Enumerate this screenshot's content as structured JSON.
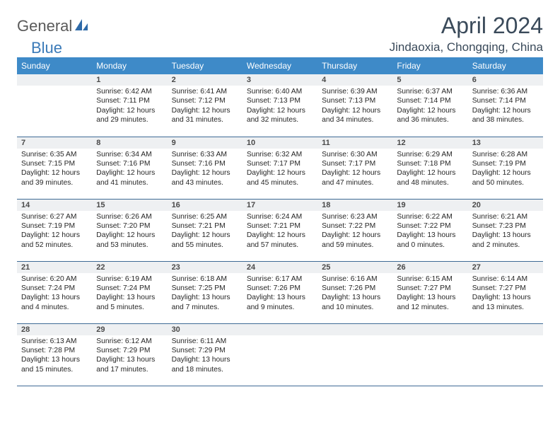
{
  "logo": {
    "general": "General",
    "blue": "Blue"
  },
  "title": "April 2024",
  "location": "Jindaoxia, Chongqing, China",
  "colors": {
    "header_bg": "#3e8ac8",
    "header_text": "#ffffff",
    "border": "#3e6a95",
    "daynum_bg": "#eef0f2",
    "text": "#262626",
    "title_color": "#3a4a5a"
  },
  "weekdays": [
    "Sunday",
    "Monday",
    "Tuesday",
    "Wednesday",
    "Thursday",
    "Friday",
    "Saturday"
  ],
  "weeks": [
    [
      {
        "n": "",
        "sunrise": "",
        "sunset": "",
        "daylight": ""
      },
      {
        "n": "1",
        "sunrise": "Sunrise: 6:42 AM",
        "sunset": "Sunset: 7:11 PM",
        "daylight": "Daylight: 12 hours and 29 minutes."
      },
      {
        "n": "2",
        "sunrise": "Sunrise: 6:41 AM",
        "sunset": "Sunset: 7:12 PM",
        "daylight": "Daylight: 12 hours and 31 minutes."
      },
      {
        "n": "3",
        "sunrise": "Sunrise: 6:40 AM",
        "sunset": "Sunset: 7:13 PM",
        "daylight": "Daylight: 12 hours and 32 minutes."
      },
      {
        "n": "4",
        "sunrise": "Sunrise: 6:39 AM",
        "sunset": "Sunset: 7:13 PM",
        "daylight": "Daylight: 12 hours and 34 minutes."
      },
      {
        "n": "5",
        "sunrise": "Sunrise: 6:37 AM",
        "sunset": "Sunset: 7:14 PM",
        "daylight": "Daylight: 12 hours and 36 minutes."
      },
      {
        "n": "6",
        "sunrise": "Sunrise: 6:36 AM",
        "sunset": "Sunset: 7:14 PM",
        "daylight": "Daylight: 12 hours and 38 minutes."
      }
    ],
    [
      {
        "n": "7",
        "sunrise": "Sunrise: 6:35 AM",
        "sunset": "Sunset: 7:15 PM",
        "daylight": "Daylight: 12 hours and 39 minutes."
      },
      {
        "n": "8",
        "sunrise": "Sunrise: 6:34 AM",
        "sunset": "Sunset: 7:16 PM",
        "daylight": "Daylight: 12 hours and 41 minutes."
      },
      {
        "n": "9",
        "sunrise": "Sunrise: 6:33 AM",
        "sunset": "Sunset: 7:16 PM",
        "daylight": "Daylight: 12 hours and 43 minutes."
      },
      {
        "n": "10",
        "sunrise": "Sunrise: 6:32 AM",
        "sunset": "Sunset: 7:17 PM",
        "daylight": "Daylight: 12 hours and 45 minutes."
      },
      {
        "n": "11",
        "sunrise": "Sunrise: 6:30 AM",
        "sunset": "Sunset: 7:17 PM",
        "daylight": "Daylight: 12 hours and 47 minutes."
      },
      {
        "n": "12",
        "sunrise": "Sunrise: 6:29 AM",
        "sunset": "Sunset: 7:18 PM",
        "daylight": "Daylight: 12 hours and 48 minutes."
      },
      {
        "n": "13",
        "sunrise": "Sunrise: 6:28 AM",
        "sunset": "Sunset: 7:19 PM",
        "daylight": "Daylight: 12 hours and 50 minutes."
      }
    ],
    [
      {
        "n": "14",
        "sunrise": "Sunrise: 6:27 AM",
        "sunset": "Sunset: 7:19 PM",
        "daylight": "Daylight: 12 hours and 52 minutes."
      },
      {
        "n": "15",
        "sunrise": "Sunrise: 6:26 AM",
        "sunset": "Sunset: 7:20 PM",
        "daylight": "Daylight: 12 hours and 53 minutes."
      },
      {
        "n": "16",
        "sunrise": "Sunrise: 6:25 AM",
        "sunset": "Sunset: 7:21 PM",
        "daylight": "Daylight: 12 hours and 55 minutes."
      },
      {
        "n": "17",
        "sunrise": "Sunrise: 6:24 AM",
        "sunset": "Sunset: 7:21 PM",
        "daylight": "Daylight: 12 hours and 57 minutes."
      },
      {
        "n": "18",
        "sunrise": "Sunrise: 6:23 AM",
        "sunset": "Sunset: 7:22 PM",
        "daylight": "Daylight: 12 hours and 59 minutes."
      },
      {
        "n": "19",
        "sunrise": "Sunrise: 6:22 AM",
        "sunset": "Sunset: 7:22 PM",
        "daylight": "Daylight: 13 hours and 0 minutes."
      },
      {
        "n": "20",
        "sunrise": "Sunrise: 6:21 AM",
        "sunset": "Sunset: 7:23 PM",
        "daylight": "Daylight: 13 hours and 2 minutes."
      }
    ],
    [
      {
        "n": "21",
        "sunrise": "Sunrise: 6:20 AM",
        "sunset": "Sunset: 7:24 PM",
        "daylight": "Daylight: 13 hours and 4 minutes."
      },
      {
        "n": "22",
        "sunrise": "Sunrise: 6:19 AM",
        "sunset": "Sunset: 7:24 PM",
        "daylight": "Daylight: 13 hours and 5 minutes."
      },
      {
        "n": "23",
        "sunrise": "Sunrise: 6:18 AM",
        "sunset": "Sunset: 7:25 PM",
        "daylight": "Daylight: 13 hours and 7 minutes."
      },
      {
        "n": "24",
        "sunrise": "Sunrise: 6:17 AM",
        "sunset": "Sunset: 7:26 PM",
        "daylight": "Daylight: 13 hours and 9 minutes."
      },
      {
        "n": "25",
        "sunrise": "Sunrise: 6:16 AM",
        "sunset": "Sunset: 7:26 PM",
        "daylight": "Daylight: 13 hours and 10 minutes."
      },
      {
        "n": "26",
        "sunrise": "Sunrise: 6:15 AM",
        "sunset": "Sunset: 7:27 PM",
        "daylight": "Daylight: 13 hours and 12 minutes."
      },
      {
        "n": "27",
        "sunrise": "Sunrise: 6:14 AM",
        "sunset": "Sunset: 7:27 PM",
        "daylight": "Daylight: 13 hours and 13 minutes."
      }
    ],
    [
      {
        "n": "28",
        "sunrise": "Sunrise: 6:13 AM",
        "sunset": "Sunset: 7:28 PM",
        "daylight": "Daylight: 13 hours and 15 minutes."
      },
      {
        "n": "29",
        "sunrise": "Sunrise: 6:12 AM",
        "sunset": "Sunset: 7:29 PM",
        "daylight": "Daylight: 13 hours and 17 minutes."
      },
      {
        "n": "30",
        "sunrise": "Sunrise: 6:11 AM",
        "sunset": "Sunset: 7:29 PM",
        "daylight": "Daylight: 13 hours and 18 minutes."
      },
      {
        "n": "",
        "sunrise": "",
        "sunset": "",
        "daylight": ""
      },
      {
        "n": "",
        "sunrise": "",
        "sunset": "",
        "daylight": ""
      },
      {
        "n": "",
        "sunrise": "",
        "sunset": "",
        "daylight": ""
      },
      {
        "n": "",
        "sunrise": "",
        "sunset": "",
        "daylight": ""
      }
    ]
  ]
}
